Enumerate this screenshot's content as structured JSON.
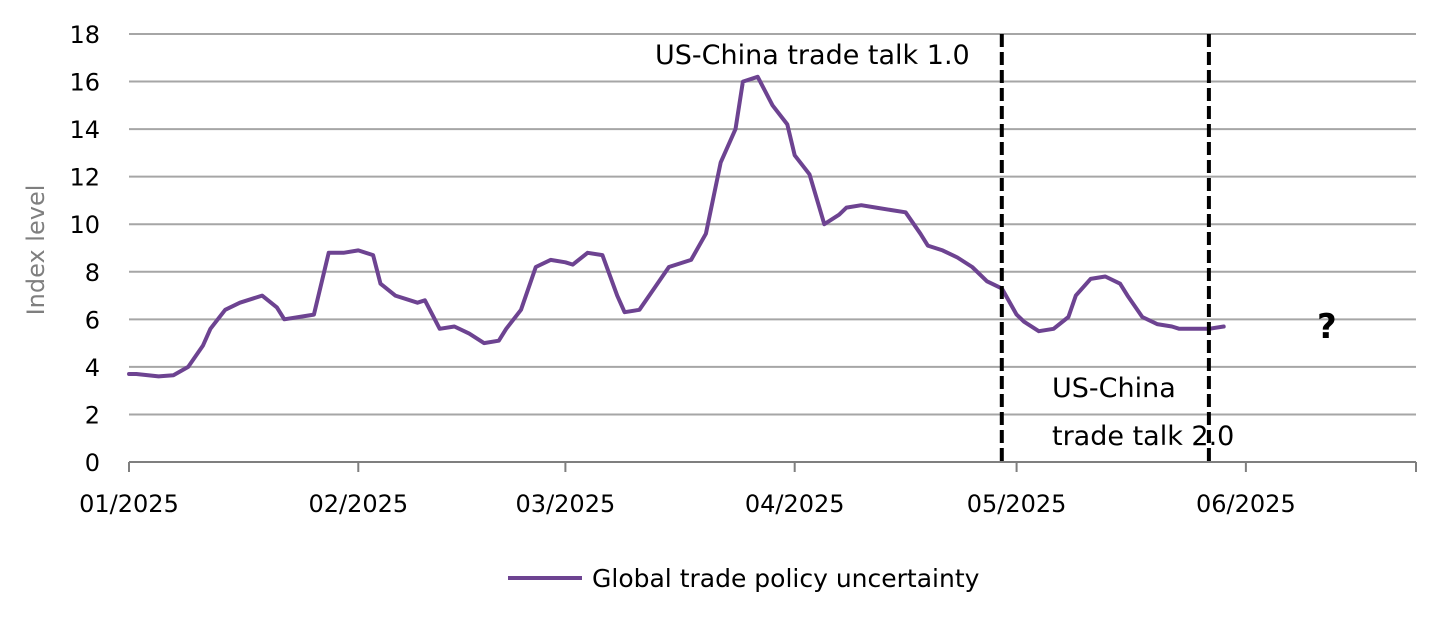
{
  "chart_data": {
    "type": "line",
    "title": "",
    "xlabel": "",
    "ylabel": "Index level",
    "ylim": [
      0,
      18
    ],
    "y_ticks": [
      "0",
      "2",
      "4",
      "6",
      "8",
      "10",
      "12",
      "14",
      "16",
      "18"
    ],
    "x_ticks": [
      "01/2025",
      "02/2025",
      "03/2025",
      "04/2025",
      "05/2025",
      "06/2025"
    ],
    "xlim": [
      "2025-01-01",
      "2025-06-24"
    ],
    "grid": true,
    "legend_position": "bottom",
    "series": [
      {
        "name": "Global trade policy uncertainty",
        "color": "#6d4391",
        "x": [
          "2025-01-01",
          "2025-01-02",
          "2025-01-05",
          "2025-01-07",
          "2025-01-09",
          "2025-01-11",
          "2025-01-12",
          "2025-01-14",
          "2025-01-16",
          "2025-01-19",
          "2025-01-21",
          "2025-01-22",
          "2025-01-24",
          "2025-01-26",
          "2025-01-28",
          "2025-01-30",
          "2025-02-01",
          "2025-02-03",
          "2025-02-04",
          "2025-02-06",
          "2025-02-09",
          "2025-02-10",
          "2025-02-12",
          "2025-02-14",
          "2025-02-16",
          "2025-02-18",
          "2025-02-20",
          "2025-02-21",
          "2025-02-23",
          "2025-02-25",
          "2025-02-27",
          "2025-03-01",
          "2025-03-02",
          "2025-03-04",
          "2025-03-06",
          "2025-03-08",
          "2025-03-09",
          "2025-03-11",
          "2025-03-13",
          "2025-03-15",
          "2025-03-16",
          "2025-03-18",
          "2025-03-20",
          "2025-03-22",
          "2025-03-24",
          "2025-03-25",
          "2025-03-27",
          "2025-03-29",
          "2025-03-31",
          "2025-04-01",
          "2025-04-03",
          "2025-04-05",
          "2025-04-07",
          "2025-04-08",
          "2025-04-10",
          "2025-04-12",
          "2025-04-14",
          "2025-04-16",
          "2025-04-18",
          "2025-04-19",
          "2025-04-21",
          "2025-04-23",
          "2025-04-25",
          "2025-04-27",
          "2025-04-29",
          "2025-05-01",
          "2025-05-02",
          "2025-05-04",
          "2025-05-06",
          "2025-05-08",
          "2025-05-09",
          "2025-05-11",
          "2025-05-13",
          "2025-05-15",
          "2025-05-16",
          "2025-05-18",
          "2025-05-20",
          "2025-05-22",
          "2025-05-23",
          "2025-05-25",
          "2025-05-27",
          "2025-05-29"
        ],
        "values": [
          3.7,
          3.7,
          3.6,
          3.65,
          4.0,
          4.9,
          5.6,
          6.4,
          6.7,
          7.0,
          6.5,
          6.0,
          6.1,
          6.2,
          8.8,
          8.8,
          8.9,
          8.7,
          7.5,
          7.0,
          6.7,
          6.8,
          5.6,
          5.7,
          5.4,
          5.0,
          5.1,
          5.6,
          6.4,
          8.2,
          8.5,
          8.4,
          8.3,
          8.8,
          8.7,
          7.0,
          6.3,
          6.4,
          7.3,
          8.2,
          8.3,
          8.5,
          9.6,
          12.6,
          14.0,
          16.0,
          16.2,
          15.0,
          14.2,
          12.9,
          12.1,
          10.0,
          10.4,
          10.7,
          10.8,
          10.7,
          10.6,
          10.5,
          9.6,
          9.1,
          8.9,
          8.6,
          8.2,
          7.6,
          7.3,
          6.2,
          5.9,
          5.5,
          5.6,
          6.1,
          7.0,
          7.7,
          7.8,
          7.5,
          7.0,
          6.1,
          5.8,
          5.7,
          5.6,
          5.6,
          5.6,
          5.7
        ]
      }
    ],
    "vertical_lines": [
      {
        "x": "2025-04-29",
        "label": "US-China trade talk 1.0"
      },
      {
        "x": "2025-05-27",
        "label": "US-China trade talk 2.0"
      }
    ],
    "annotations": {
      "talk1": "US-China trade talk 1.0",
      "talk2_line1": "US-China",
      "talk2_line2": "trade talk 2.0",
      "question": "?"
    }
  }
}
